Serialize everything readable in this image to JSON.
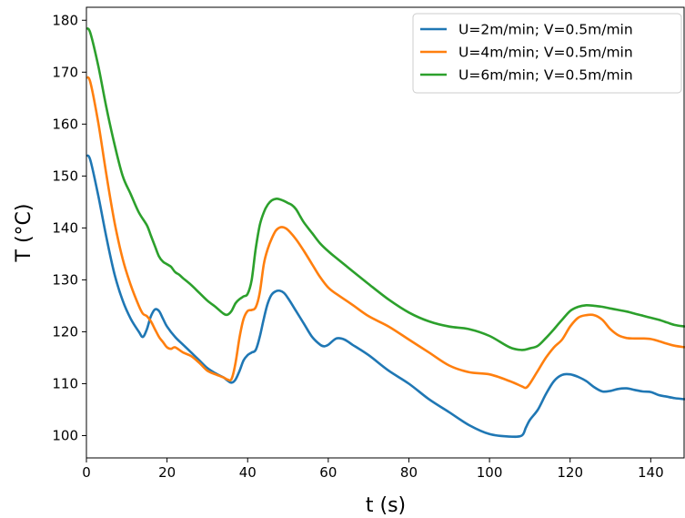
{
  "chart_data": {
    "type": "line",
    "title": "",
    "xlabel": "t (s)",
    "ylabel": "T (°C)",
    "xlim": [
      0,
      148.5
    ],
    "ylim": [
      95.7,
      182.5
    ],
    "xticks": [
      0,
      20,
      40,
      60,
      80,
      100,
      120,
      140
    ],
    "yticks": [
      100,
      110,
      120,
      130,
      140,
      150,
      160,
      170,
      180
    ],
    "grid": false,
    "legend_position": "top-right",
    "series": [
      {
        "name": "U=2m/min; V=0.5m/min",
        "color": "#1f77b4",
        "x": [
          0,
          1,
          3,
          5,
          7,
          9,
          11,
          13,
          14,
          15,
          16,
          17,
          18,
          19,
          20,
          22,
          24,
          26,
          28,
          30,
          32,
          34,
          35,
          36,
          37,
          38,
          39,
          40,
          41,
          42,
          43,
          44,
          45,
          46,
          47,
          48,
          49,
          50,
          52,
          54,
          56,
          58,
          59,
          60,
          62,
          64,
          66,
          70,
          75,
          80,
          85,
          90,
          95,
          100,
          105,
          108,
          109,
          110,
          112,
          114,
          116,
          118,
          120,
          122,
          124,
          126,
          128,
          130,
          132,
          134,
          136,
          138,
          140,
          142,
          144,
          146,
          148.5
        ],
        "y": [
          154,
          153,
          146,
          138,
          131,
          126,
          122.5,
          120,
          119,
          120.5,
          123,
          124.3,
          124,
          122.5,
          121,
          119,
          117.5,
          116,
          114.5,
          113,
          112,
          111.2,
          110.6,
          110.2,
          110.8,
          112.5,
          114.5,
          115.5,
          116,
          116.5,
          119,
          122.5,
          125.5,
          127.2,
          127.8,
          127.9,
          127.5,
          126.5,
          124,
          121.5,
          119,
          117.5,
          117.2,
          117.5,
          118.7,
          118.5,
          117.5,
          115.5,
          112.5,
          110,
          107,
          104.5,
          102,
          100.3,
          99.8,
          100,
          101.5,
          103,
          105,
          108,
          110.5,
          111.7,
          111.8,
          111.3,
          110.5,
          109.3,
          108.5,
          108.6,
          109,
          109.1,
          108.8,
          108.5,
          108.4,
          107.8,
          107.5,
          107.2,
          107
        ]
      },
      {
        "name": "U=4m/min; V=0.5m/min",
        "color": "#ff7f0e",
        "x": [
          0,
          1,
          3,
          5,
          7,
          9,
          11,
          13,
          14,
          15,
          16,
          17,
          18,
          19,
          20,
          21,
          22,
          24,
          26,
          28,
          30,
          32,
          34,
          35,
          36,
          37,
          38,
          39,
          40,
          41,
          42,
          43,
          44,
          45,
          46,
          47,
          48,
          49,
          50,
          52,
          54,
          56,
          58,
          60,
          62,
          66,
          70,
          75,
          80,
          85,
          90,
          95,
          100,
          105,
          108,
          109,
          110,
          112,
          114,
          116,
          118,
          120,
          122,
          124,
          126,
          128,
          130,
          132,
          134,
          136,
          138,
          140,
          142,
          144,
          146,
          148.5
        ],
        "y": [
          169,
          168,
          160,
          150,
          141,
          134,
          129,
          125,
          123.5,
          123,
          122,
          120.5,
          119,
          118,
          117,
          116.7,
          117,
          116,
          115.3,
          114,
          112.5,
          111.8,
          111.2,
          110.8,
          110.9,
          114,
          119,
          122.5,
          124,
          124.2,
          124.7,
          127.5,
          133,
          136,
          138,
          139.5,
          140.1,
          140.1,
          139.6,
          137.8,
          135.5,
          133,
          130.5,
          128.5,
          127.3,
          125.2,
          123,
          121,
          118.5,
          116,
          113.5,
          112.2,
          111.8,
          110.5,
          109.5,
          109.2,
          110,
          112.5,
          115,
          117,
          118.5,
          121,
          122.7,
          123.2,
          123.2,
          122.3,
          120.5,
          119.3,
          118.8,
          118.7,
          118.7,
          118.6,
          118.2,
          117.7,
          117.3,
          117
        ]
      },
      {
        "name": "U=6m/min; V=0.5m/min",
        "color": "#2ca02c",
        "x": [
          0,
          1,
          3,
          5,
          7,
          9,
          11,
          13,
          15,
          16,
          17,
          18,
          19,
          20,
          21,
          22,
          23,
          24,
          26,
          28,
          30,
          32,
          34,
          35,
          36,
          37,
          38,
          39,
          40,
          41,
          42,
          43,
          44,
          45,
          46,
          47,
          48,
          49,
          50,
          51,
          52,
          53,
          54,
          56,
          58,
          60,
          62,
          66,
          70,
          75,
          80,
          85,
          90,
          95,
          100,
          105,
          108,
          110,
          112,
          114,
          116,
          118,
          120,
          122,
          124,
          126,
          128,
          130,
          132,
          134,
          136,
          138,
          140,
          142,
          144,
          146,
          148.5
        ],
        "y": [
          178.5,
          177.5,
          171,
          163,
          156,
          150,
          146.5,
          143,
          140.5,
          138.5,
          136.5,
          134.5,
          133.5,
          133,
          132.5,
          131.5,
          131,
          130.3,
          129,
          127.5,
          126,
          124.8,
          123.5,
          123.3,
          124,
          125.5,
          126.3,
          126.8,
          127.3,
          130,
          136,
          140.5,
          143,
          144.5,
          145.3,
          145.6,
          145.5,
          145.2,
          144.8,
          144.4,
          143.6,
          142.3,
          141,
          139,
          137,
          135.5,
          134.2,
          131.7,
          129.2,
          126.2,
          123.7,
          122,
          121,
          120.5,
          119.2,
          117,
          116.5,
          116.8,
          117.3,
          118.8,
          120.5,
          122.3,
          124,
          124.8,
          125.1,
          125,
          124.8,
          124.5,
          124.2,
          123.9,
          123.5,
          123.1,
          122.7,
          122.3,
          121.8,
          121.3,
          121
        ]
      }
    ]
  }
}
